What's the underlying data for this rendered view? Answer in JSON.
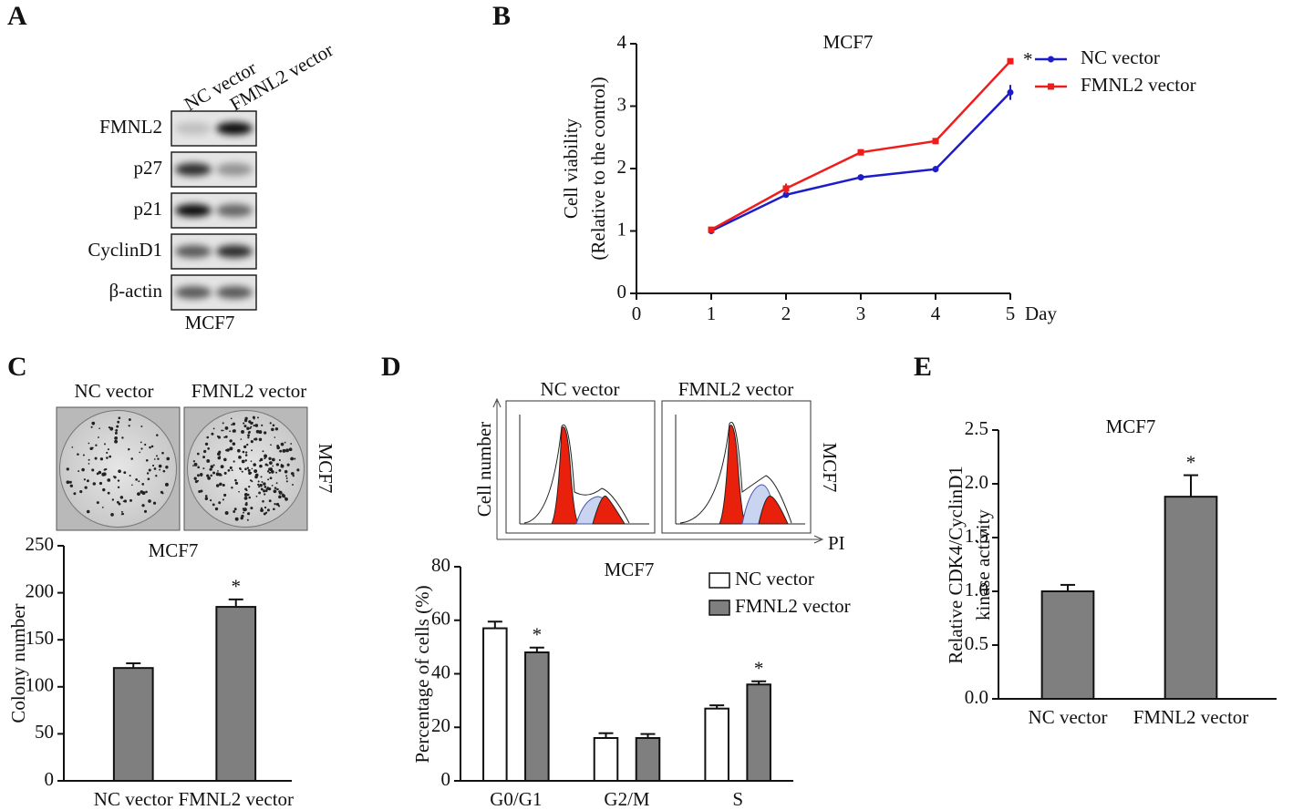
{
  "panels": [
    "A",
    "B",
    "C",
    "D",
    "E"
  ],
  "blot": {
    "lanes": [
      "NC vector",
      "FMNL2 vector"
    ],
    "rows": [
      "FMNL2",
      "p27",
      "p21",
      "CyclinD1",
      "β-actin"
    ],
    "cell_line": "MCF7"
  },
  "colony": {
    "labels": [
      "NC vector",
      "FMNL2 vector"
    ],
    "cell_line": "MCF7"
  },
  "flow": {
    "labels": [
      "NC vector",
      "FMNL2 vector"
    ],
    "y_label": "Cell number",
    "x_label": "PI",
    "cell_line": "MCF7"
  },
  "chart_data": [
    {
      "type": "line",
      "title": "MCF7",
      "y_label": [
        "Cell viability",
        "(Relative to the control)"
      ],
      "x_label": "Day",
      "x": [
        1,
        2,
        3,
        4,
        5
      ],
      "xlim": [
        0,
        5
      ],
      "xticks": [
        0,
        1,
        2,
        3,
        4,
        5
      ],
      "ylim": [
        0,
        4
      ],
      "yticks": [
        0,
        1,
        2,
        3,
        4
      ],
      "legend": "right",
      "series": [
        {
          "name": "NC vector",
          "color": "#1c1cc8",
          "values": [
            1.0,
            1.58,
            1.86,
            1.99,
            3.22
          ],
          "errors": [
            0.02,
            0.04,
            0.04,
            0.05,
            0.12
          ]
        },
        {
          "name": "FMNL2 vector",
          "color": "#f01c1c",
          "values": [
            1.02,
            1.68,
            2.26,
            2.44,
            3.72
          ],
          "errors": [
            0.02,
            0.08,
            0.05,
            0.05,
            0.03
          ]
        }
      ],
      "annotations": [
        {
          "text": "*",
          "series": 1,
          "index": 4
        }
      ]
    },
    {
      "type": "bar",
      "title": "MCF7",
      "y_label": [
        "Colony number"
      ],
      "categories": [
        "NC vector",
        "FMNL2 vector"
      ],
      "values": [
        120,
        185
      ],
      "errors": [
        5,
        8
      ],
      "color": "#7f7f7f",
      "ylim": [
        0,
        250
      ],
      "yticks": [
        0,
        50,
        100,
        150,
        200,
        250
      ],
      "annotations": [
        {
          "text": "*",
          "index": 1
        }
      ]
    },
    {
      "type": "bar",
      "title": "MCF7",
      "y_label": [
        "Percentage of cells (%)"
      ],
      "categories": [
        "G0/G1",
        "G2/M",
        "S"
      ],
      "ylim": [
        0,
        80
      ],
      "yticks": [
        0,
        20,
        40,
        60,
        80
      ],
      "legend": "top-right",
      "series": [
        {
          "name": "NC vector",
          "color": "#ffffff",
          "values": [
            57,
            16,
            27
          ],
          "errors": [
            2.5,
            1.8,
            1.2
          ]
        },
        {
          "name": "FMNL2 vector",
          "color": "#7f7f7f",
          "values": [
            48,
            16,
            36
          ],
          "errors": [
            1.8,
            1.5,
            1.2
          ]
        }
      ],
      "annotations": [
        {
          "text": "*",
          "series": 1,
          "index": 0
        },
        {
          "text": "*",
          "series": 1,
          "index": 2
        }
      ]
    },
    {
      "type": "bar",
      "title": "MCF7",
      "y_label": [
        "Relative CDK4/CyclinD1",
        "kinase activity"
      ],
      "categories": [
        "NC vector",
        "FMNL2 vector"
      ],
      "values": [
        1.0,
        1.88
      ],
      "errors": [
        0.06,
        0.2
      ],
      "color": "#7f7f7f",
      "ylim": [
        0,
        2.5
      ],
      "yticks": [
        {
          "value": 0,
          "label": "0.0"
        },
        {
          "value": 0.5,
          "label": "0.5"
        },
        {
          "value": 1,
          "label": "1.0"
        },
        {
          "value": 1.5,
          "label": "1.5"
        },
        {
          "value": 2,
          "label": "2.0"
        },
        {
          "value": 2.5,
          "label": "2.5"
        }
      ],
      "annotations": [
        {
          "text": "*",
          "index": 1
        }
      ]
    }
  ]
}
